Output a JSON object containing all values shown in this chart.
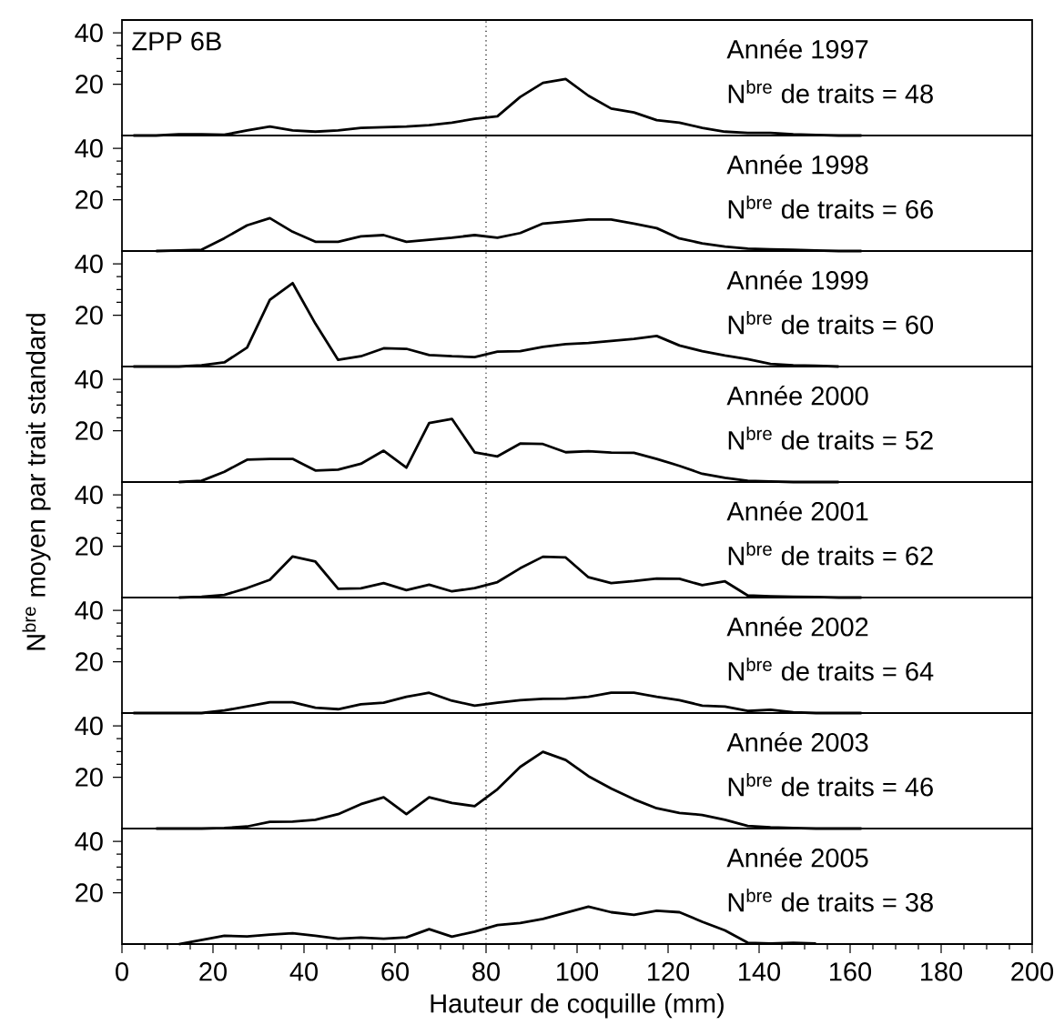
{
  "chart_data": [
    {
      "type": "line",
      "title": "Année 1997",
      "subtitle": "N$^{bre}$ de traits = 48",
      "annotations": [
        "ZPP 6B"
      ],
      "color": "#000000",
      "tick_labels": "y",
      "xlim": [
        0,
        200
      ],
      "ylim": [
        0,
        45
      ],
      "xticks": [
        0,
        20,
        40,
        60,
        80,
        100,
        120,
        140,
        160,
        180,
        200
      ],
      "yticks": [
        20,
        40
      ],
      "ref_lines": [
        {
          "axis": "x",
          "value": 80,
          "line_style": "dotted"
        }
      ],
      "x": [
        2.5,
        7.5,
        12.5,
        17.5,
        22.5,
        27.5,
        32.5,
        37.5,
        42.5,
        47.5,
        52.5,
        57.5,
        62.5,
        67.5,
        72.5,
        77.5,
        82.5,
        87.5,
        92.5,
        97.5,
        102.5,
        107.5,
        112.5,
        117.5,
        122.5,
        127.5,
        132.5,
        137.5,
        142.5,
        147.5,
        152.5,
        157.5,
        162.5
      ],
      "values": [
        0,
        0,
        0.5,
        0.5,
        0.3,
        2,
        3.5,
        2,
        1.5,
        2,
        3,
        3.2,
        3.5,
        4,
        5,
        6.5,
        7.5,
        15,
        20.5,
        22,
        15.5,
        10.5,
        9,
        6,
        5,
        3,
        1.5,
        1,
        1,
        0.5,
        0.2,
        0,
        0
      ]
    },
    {
      "type": "line",
      "title": "Année 1998",
      "subtitle": "N$^{bre}$ de traits = 66",
      "color": "#000000",
      "tick_labels": "y",
      "xlim": [
        0,
        200
      ],
      "ylim": [
        0,
        45
      ],
      "xticks": [
        0,
        20,
        40,
        60,
        80,
        100,
        120,
        140,
        160,
        180,
        200
      ],
      "yticks": [
        20,
        40
      ],
      "ref_lines": [
        {
          "axis": "x",
          "value": 80,
          "line_style": "dotted"
        }
      ],
      "x": [
        7.5,
        12.5,
        17.5,
        22.5,
        27.5,
        32.5,
        37.5,
        42.5,
        47.5,
        52.5,
        57.5,
        62.5,
        67.5,
        72.5,
        77.5,
        82.5,
        87.5,
        92.5,
        97.5,
        102.5,
        107.5,
        112.5,
        117.5,
        122.5,
        127.5,
        132.5,
        137.5,
        142.5,
        147.5,
        152.5,
        157.5,
        162.5
      ],
      "values": [
        0,
        0.2,
        0.5,
        5,
        10,
        12.8,
        7.5,
        3.6,
        3.6,
        5.7,
        6.2,
        3.6,
        4.4,
        5.2,
        6.2,
        5.2,
        7,
        10.7,
        11.5,
        12.3,
        12.3,
        10.7,
        8.9,
        4.9,
        3,
        1.7,
        0.9,
        0.7,
        0.5,
        0.2,
        0,
        0
      ]
    },
    {
      "type": "line",
      "title": "Année 1999",
      "subtitle": "N$^{bre}$ de traits = 60",
      "color": "#000000",
      "tick_labels": "y",
      "xlim": [
        0,
        200
      ],
      "ylim": [
        0,
        45
      ],
      "xticks": [
        0,
        20,
        40,
        60,
        80,
        100,
        120,
        140,
        160,
        180,
        200
      ],
      "yticks": [
        20,
        40
      ],
      "ref_lines": [
        {
          "axis": "x",
          "value": 80,
          "line_style": "dotted"
        }
      ],
      "x": [
        2.5,
        7.5,
        12.5,
        17.5,
        22.5,
        27.5,
        32.5,
        37.5,
        42.5,
        47.5,
        52.5,
        57.5,
        62.5,
        67.5,
        72.5,
        77.5,
        82.5,
        87.5,
        92.5,
        97.5,
        102.5,
        107.5,
        112.5,
        117.5,
        122.5,
        127.5,
        132.5,
        137.5,
        142.5,
        147.5,
        152.5,
        157.5
      ],
      "values": [
        0,
        0,
        0,
        0.5,
        1.6,
        7.4,
        26,
        32.5,
        16.7,
        2.6,
        4,
        7.1,
        6.9,
        4.5,
        4,
        3.7,
        5.8,
        6,
        7.7,
        8.7,
        9.2,
        10,
        10.8,
        11.9,
        8.2,
        6,
        4.3,
        2.9,
        1,
        0.5,
        0.3,
        0
      ]
    },
    {
      "type": "line",
      "title": "Année 2000",
      "subtitle": "N$^{bre}$ de traits = 52",
      "ylabel": "N$^{bre}$ moyen par trait standard",
      "color": "#000000",
      "tick_labels": "y",
      "xlim": [
        0,
        200
      ],
      "ylim": [
        0,
        45
      ],
      "xticks": [
        0,
        20,
        40,
        60,
        80,
        100,
        120,
        140,
        160,
        180,
        200
      ],
      "yticks": [
        20,
        40
      ],
      "ref_lines": [
        {
          "axis": "x",
          "value": 80,
          "line_style": "dotted"
        }
      ],
      "x": [
        12.5,
        17.5,
        22.5,
        27.5,
        32.5,
        37.5,
        42.5,
        47.5,
        52.5,
        57.5,
        62.5,
        67.5,
        72.5,
        77.5,
        82.5,
        87.5,
        92.5,
        97.5,
        102.5,
        107.5,
        112.5,
        117.5,
        122.5,
        127.5,
        132.5,
        137.5,
        142.5,
        147.5,
        152.5,
        157.5
      ],
      "values": [
        0,
        0.5,
        4,
        8.7,
        9,
        9,
        4.5,
        4.8,
        7.1,
        12.2,
        5.6,
        23,
        24.6,
        11.6,
        10,
        15,
        14.8,
        11.6,
        12,
        11.5,
        11.4,
        9,
        6.3,
        3.2,
        1.6,
        0.5,
        0.2,
        0,
        0,
        0
      ]
    },
    {
      "type": "line",
      "title": "Année 2001",
      "subtitle": "N$^{bre}$ de traits = 62",
      "color": "#000000",
      "tick_labels": "y",
      "xlim": [
        0,
        200
      ],
      "ylim": [
        0,
        45
      ],
      "xticks": [
        0,
        20,
        40,
        60,
        80,
        100,
        120,
        140,
        160,
        180,
        200
      ],
      "yticks": [
        20,
        40
      ],
      "ref_lines": [
        {
          "axis": "x",
          "value": 80,
          "line_style": "dotted"
        }
      ],
      "x": [
        12.5,
        17.5,
        22.5,
        27.5,
        32.5,
        37.5,
        42.5,
        47.5,
        52.5,
        57.5,
        62.5,
        67.5,
        72.5,
        77.5,
        82.5,
        87.5,
        92.5,
        97.5,
        102.5,
        107.5,
        112.5,
        117.5,
        122.5,
        127.5,
        132.5,
        137.5,
        142.5,
        147.5,
        152.5,
        157.5,
        162.5
      ],
      "values": [
        0,
        0.3,
        1,
        3.7,
        6.9,
        16,
        14,
        3.4,
        3.6,
        5.6,
        2.9,
        5,
        2.4,
        3.7,
        6,
        11.4,
        15.9,
        15.6,
        7.9,
        5.6,
        6.4,
        7.4,
        7.3,
        4.8,
        6.3,
        0.8,
        0.5,
        0.3,
        0.2,
        0,
        0
      ]
    },
    {
      "type": "line",
      "title": "Année 2002",
      "subtitle": "N$^{bre}$ de traits = 64",
      "color": "#000000",
      "tick_labels": "y",
      "xlim": [
        0,
        200
      ],
      "ylim": [
        0,
        45
      ],
      "xticks": [
        0,
        20,
        40,
        60,
        80,
        100,
        120,
        140,
        160,
        180,
        200
      ],
      "yticks": [
        20,
        40
      ],
      "ref_lines": [
        {
          "axis": "x",
          "value": 80,
          "line_style": "dotted"
        }
      ],
      "x": [
        2.5,
        7.5,
        12.5,
        17.5,
        22.5,
        27.5,
        32.5,
        37.5,
        42.5,
        47.5,
        52.5,
        57.5,
        62.5,
        67.5,
        72.5,
        77.5,
        82.5,
        87.5,
        92.5,
        97.5,
        102.5,
        107.5,
        112.5,
        117.5,
        122.5,
        127.5,
        132.5,
        137.5,
        142.5,
        147.5,
        152.5,
        157.5,
        162.5
      ],
      "values": [
        0,
        0,
        0,
        0,
        1,
        2.6,
        4.2,
        4.2,
        2.1,
        1.5,
        3.4,
        4,
        6.3,
        7.9,
        4.8,
        2.9,
        4,
        5,
        5.5,
        5.6,
        6.3,
        7.9,
        7.9,
        6.3,
        5,
        2.9,
        2.5,
        0.8,
        1.3,
        0.3,
        0,
        0,
        0
      ]
    },
    {
      "type": "line",
      "title": "Année 2003",
      "subtitle": "N$^{bre}$ de traits = 46",
      "color": "#000000",
      "tick_labels": "y",
      "xlim": [
        0,
        200
      ],
      "ylim": [
        0,
        45
      ],
      "xticks": [
        0,
        20,
        40,
        60,
        80,
        100,
        120,
        140,
        160,
        180,
        200
      ],
      "yticks": [
        20,
        40
      ],
      "ref_lines": [
        {
          "axis": "x",
          "value": 80,
          "line_style": "dotted"
        }
      ],
      "x": [
        7.5,
        12.5,
        17.5,
        22.5,
        27.5,
        32.5,
        37.5,
        42.5,
        47.5,
        52.5,
        57.5,
        62.5,
        67.5,
        72.5,
        77.5,
        82.5,
        87.5,
        92.5,
        97.5,
        102.5,
        107.5,
        112.5,
        117.5,
        122.5,
        127.5,
        132.5,
        137.5,
        142.5,
        147.5,
        152.5,
        157.5,
        162.5
      ],
      "values": [
        0,
        0,
        0,
        0.2,
        0.8,
        2.6,
        2.7,
        3.4,
        5.6,
        9.5,
        12.2,
        5.6,
        12.2,
        10,
        8.7,
        15.3,
        24,
        29.9,
        26.7,
        20.4,
        15.6,
        11.4,
        7.9,
        6.1,
        5.3,
        3.4,
        1,
        0.5,
        0.2,
        0,
        0,
        0
      ]
    },
    {
      "type": "line",
      "title": "Année 2005",
      "subtitle": "N$^{bre}$ de traits = 38",
      "xlabel": "Hauteur de coquille (mm)",
      "color": "#000000",
      "xlim": [
        0,
        200
      ],
      "ylim": [
        0,
        45
      ],
      "xticks": [
        0,
        20,
        40,
        60,
        80,
        100,
        120,
        140,
        160,
        180,
        200
      ],
      "yticks": [
        20,
        40
      ],
      "ref_lines": [
        {
          "axis": "x",
          "value": 80,
          "line_style": "dotted"
        }
      ],
      "x": [
        12.5,
        17.5,
        22.5,
        27.5,
        32.5,
        37.5,
        42.5,
        47.5,
        52.5,
        57.5,
        62.5,
        67.5,
        72.5,
        77.5,
        82.5,
        87.5,
        92.5,
        97.5,
        102.5,
        107.5,
        112.5,
        117.5,
        122.5,
        127.5,
        132.5,
        137.5,
        142.5,
        147.5,
        152.5
      ],
      "values": [
        0,
        1.6,
        3.2,
        3,
        3.7,
        4.2,
        3.2,
        2.1,
        2.5,
        2.1,
        2.6,
        5.8,
        2.9,
        4.8,
        7.4,
        8.2,
        9.8,
        12.2,
        14.6,
        12.4,
        11.4,
        13,
        12.4,
        8.7,
        5.3,
        0.5,
        0.2,
        0.5,
        0.2
      ]
    }
  ]
}
